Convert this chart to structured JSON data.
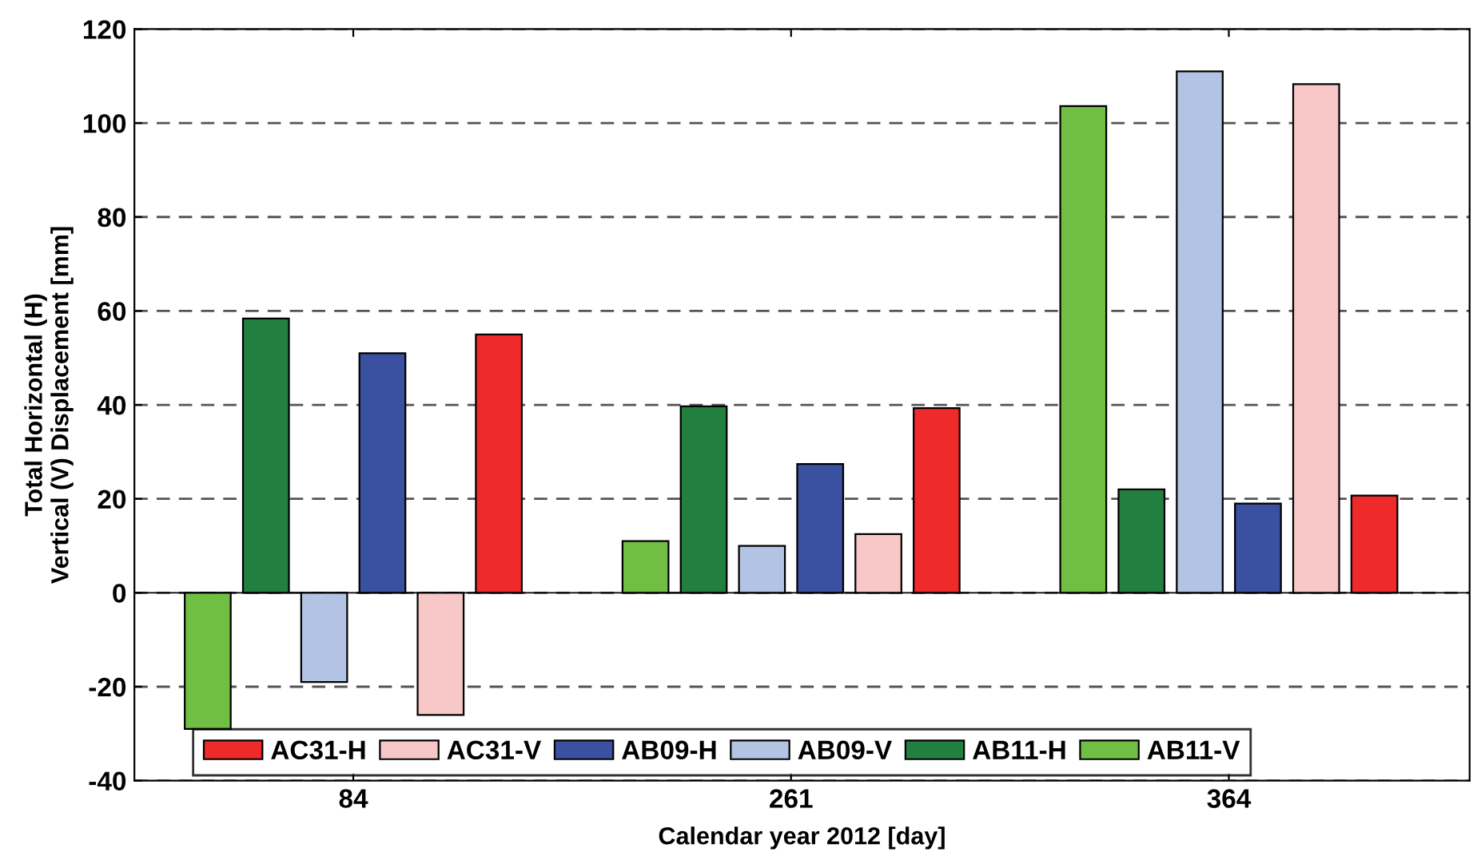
{
  "chart_data": {
    "type": "bar",
    "xlabel": "Calendar year 2012 [day]",
    "ylabel": "Total Horizontal (H)\nVertical (V) Displacement [mm]",
    "categories": [
      "84",
      "261",
      "364"
    ],
    "series": [
      {
        "name": "AB11-V",
        "color": "#70bf44",
        "values": [
          -29,
          11,
          103.6
        ]
      },
      {
        "name": "AB11-H",
        "color": "#237f3f",
        "values": [
          58.4,
          39.7,
          22
        ]
      },
      {
        "name": "AB09-V",
        "color": "#b3c3e3",
        "values": [
          -19,
          10,
          111
        ]
      },
      {
        "name": "AB09-H",
        "color": "#3a50a0",
        "values": [
          51,
          27.4,
          19
        ]
      },
      {
        "name": "AC31-V",
        "color": "#f8c8c8",
        "values": [
          -26,
          12.5,
          108.3
        ]
      },
      {
        "name": "AC31-H",
        "color": "#ee2a2a",
        "values": [
          55,
          39.3,
          20.7
        ]
      }
    ],
    "ylim": [
      -40,
      120
    ],
    "yticks": [
      -40,
      -20,
      0,
      20,
      40,
      60,
      80,
      100,
      120
    ],
    "grid": "y",
    "legend": "bottom"
  }
}
